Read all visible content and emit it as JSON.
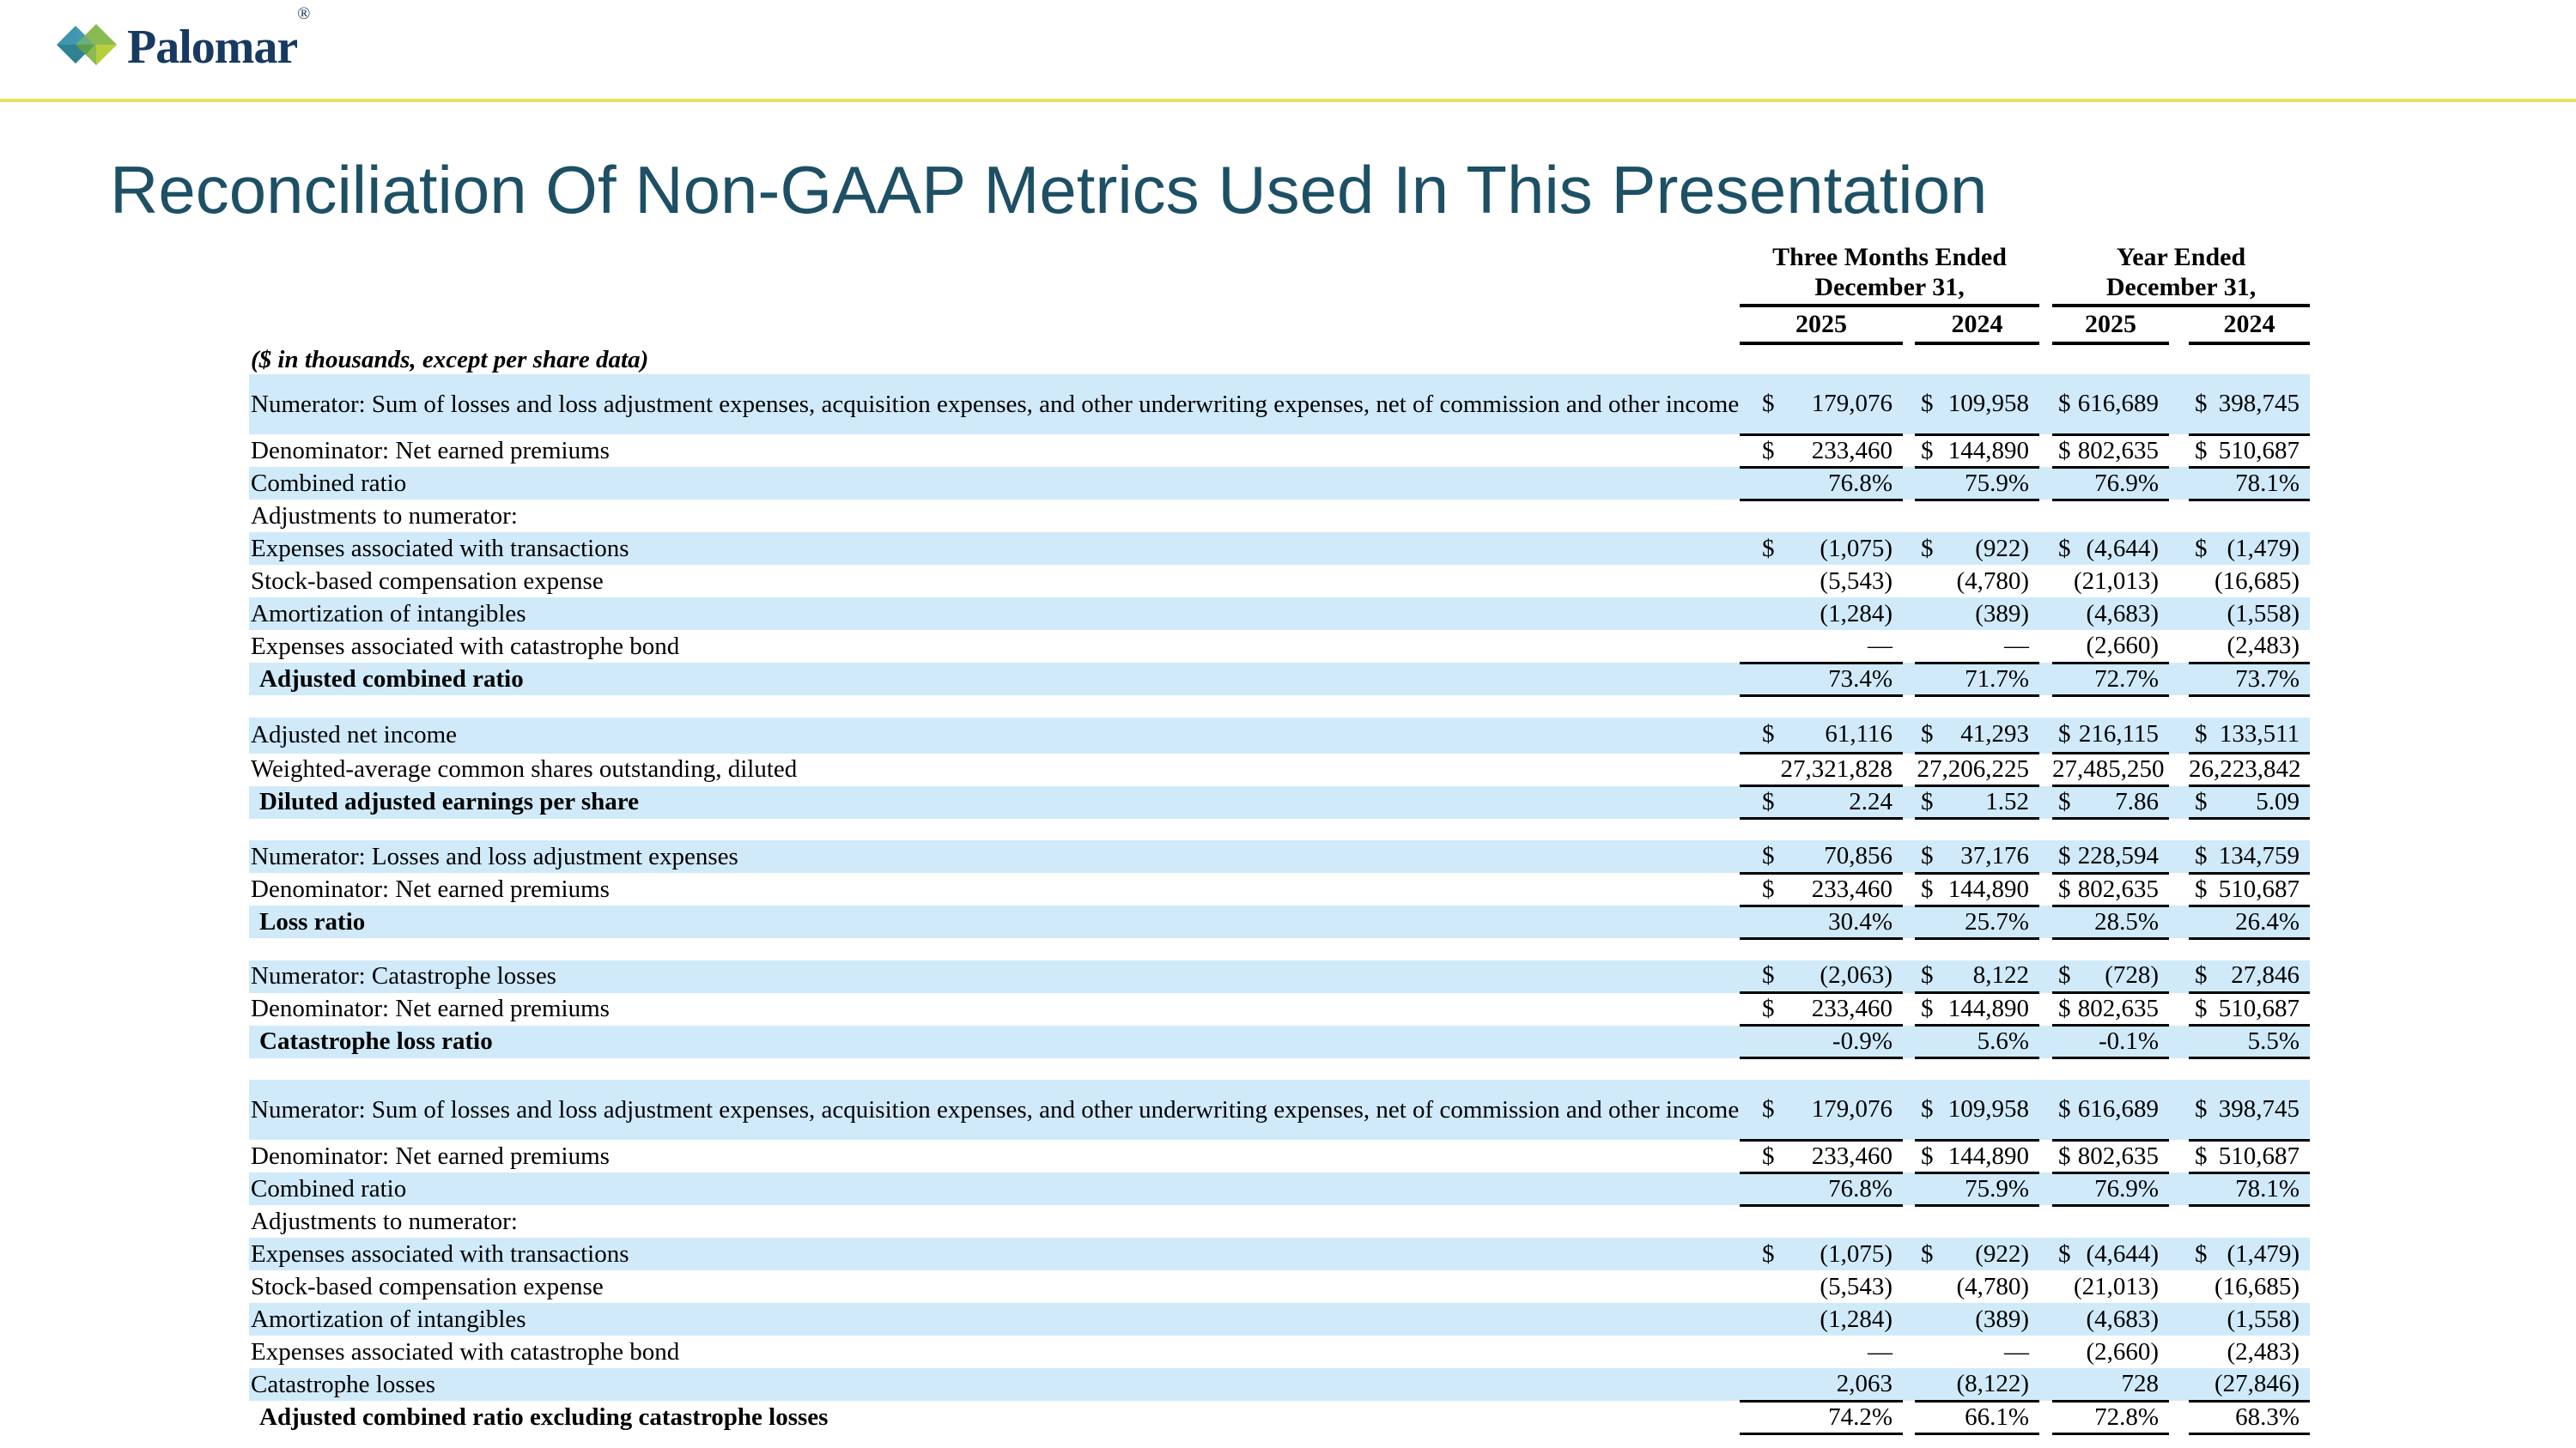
{
  "brand": {
    "logo_text": "Palomar",
    "registered_mark": "®",
    "colors": {
      "navy": "#173a61",
      "teal_top": "#3f96ae",
      "teal_bottom": "#2f8292",
      "green_top": "#8cba52",
      "green_right": "#b8ce3b",
      "green_overlap": "#5c9f4b",
      "divider_yellow": "#e1e465",
      "row_blue": "#d0eafa",
      "title_color": "#1d5065"
    }
  },
  "title": "Reconciliation Of Non-GAAP Metrics Used In This Presentation",
  "table": {
    "header": {
      "group1_line1": "Three Months Ended",
      "group1_line2": "December 31,",
      "group2_line1": "Year Ended",
      "group2_line2": "December 31,"
    },
    "years": [
      "2025",
      "2024",
      "2025",
      "2024"
    ],
    "units_note": "($ in thousands, except per share data)",
    "rows": [
      {
        "label": "Numerator: Sum of losses and loss adjustment expenses, acquisition expenses, and other underwriting expenses, net of commission and other income",
        "shade": true,
        "dollar": true,
        "ul": true,
        "h": 70,
        "values": [
          "179,076",
          "109,958",
          "616,689",
          "398,745"
        ]
      },
      {
        "label": "Denominator: Net earned premiums",
        "shade": false,
        "dollar": true,
        "ul": true,
        "values": [
          "233,460",
          "144,890",
          "802,635",
          "510,687"
        ]
      },
      {
        "label": "Combined ratio",
        "shade": true,
        "dollar": false,
        "ul": true,
        "values": [
          "76.8%",
          "75.9%",
          "76.9%",
          "78.1%"
        ]
      },
      {
        "label": "Adjustments to numerator:",
        "shade": false,
        "dollar": false,
        "ul": false,
        "values": null
      },
      {
        "label": "Expenses associated with transactions",
        "shade": true,
        "dollar": true,
        "ul": false,
        "values": [
          "(1,075)",
          "(922)",
          "(4,644)",
          "(1,479)"
        ]
      },
      {
        "label": "Stock-based compensation expense",
        "shade": false,
        "dollar": false,
        "ul": false,
        "values": [
          "(5,543)",
          "(4,780)",
          "(21,013)",
          "(16,685)"
        ]
      },
      {
        "label": "Amortization of intangibles",
        "shade": true,
        "dollar": false,
        "ul": false,
        "values": [
          "(1,284)",
          "(389)",
          "(4,683)",
          "(1,558)"
        ]
      },
      {
        "label": "Expenses associated with catastrophe bond",
        "shade": false,
        "dollar": false,
        "ul": true,
        "values": [
          "—",
          "—",
          "(2,660)",
          "(2,483)"
        ]
      },
      {
        "label": "Adjusted combined ratio",
        "shade": true,
        "bold": true,
        "dollar": false,
        "ul": true,
        "values": [
          "73.4%",
          "71.7%",
          "72.7%",
          "73.7%"
        ]
      },
      {
        "spacer": true
      },
      {
        "label": "Adjusted net income",
        "shade": true,
        "dollar": true,
        "ul": true,
        "h": 42,
        "values": [
          "61,116",
          "41,293",
          "216,115",
          "133,511"
        ]
      },
      {
        "label": "Weighted-average common shares outstanding, diluted",
        "shade": false,
        "dollar": false,
        "ul": true,
        "values": [
          "27,321,828",
          "27,206,225",
          "27,485,250",
          "26,223,842"
        ]
      },
      {
        "label": "Diluted adjusted earnings per share",
        "shade": true,
        "bold": true,
        "dollar": true,
        "ul": true,
        "values": [
          "2.24",
          "1.52",
          "7.86",
          "5.09"
        ]
      },
      {
        "spacer": true
      },
      {
        "label": "Numerator: Losses and loss adjustment expenses",
        "shade": true,
        "dollar": true,
        "ul": true,
        "values": [
          "70,856",
          "37,176",
          "228,594",
          "134,759"
        ]
      },
      {
        "label": "Denominator: Net earned premiums",
        "shade": false,
        "dollar": true,
        "ul": true,
        "values": [
          "233,460",
          "144,890",
          "802,635",
          "510,687"
        ]
      },
      {
        "label": "Loss ratio",
        "shade": true,
        "bold": true,
        "dollar": false,
        "ul": true,
        "values": [
          "30.4%",
          "25.7%",
          "28.5%",
          "26.4%"
        ]
      },
      {
        "spacer": true
      },
      {
        "label": "Numerator: Catastrophe losses",
        "shade": true,
        "dollar": true,
        "ul": true,
        "values": [
          "(2,063)",
          "8,122",
          "(728)",
          "27,846"
        ]
      },
      {
        "label": "Denominator: Net earned premiums",
        "shade": false,
        "dollar": true,
        "ul": true,
        "values": [
          "233,460",
          "144,890",
          "802,635",
          "510,687"
        ]
      },
      {
        "label": "Catastrophe loss ratio",
        "shade": true,
        "bold": true,
        "dollar": false,
        "ul": true,
        "values": [
          "-0.9%",
          "5.6%",
          "-0.1%",
          "5.5%"
        ]
      },
      {
        "spacer": true
      },
      {
        "label": "Numerator: Sum of losses and loss adjustment expenses, acquisition expenses, and other underwriting expenses, net of commission and other income",
        "shade": true,
        "dollar": true,
        "ul": true,
        "h": 70,
        "values": [
          "179,076",
          "109,958",
          "616,689",
          "398,745"
        ]
      },
      {
        "label": "Denominator: Net earned premiums",
        "shade": false,
        "dollar": true,
        "ul": true,
        "values": [
          "233,460",
          "144,890",
          "802,635",
          "510,687"
        ]
      },
      {
        "label": "Combined ratio",
        "shade": true,
        "dollar": false,
        "ul": true,
        "values": [
          "76.8%",
          "75.9%",
          "76.9%",
          "78.1%"
        ]
      },
      {
        "label": "Adjustments to numerator:",
        "shade": false,
        "dollar": false,
        "ul": false,
        "values": null
      },
      {
        "label": "Expenses associated with transactions",
        "shade": true,
        "dollar": true,
        "ul": false,
        "values": [
          "(1,075)",
          "(922)",
          "(4,644)",
          "(1,479)"
        ]
      },
      {
        "label": "Stock-based compensation expense",
        "shade": false,
        "dollar": false,
        "ul": false,
        "values": [
          "(5,543)",
          "(4,780)",
          "(21,013)",
          "(16,685)"
        ]
      },
      {
        "label": "Amortization of intangibles",
        "shade": true,
        "dollar": false,
        "ul": false,
        "values": [
          "(1,284)",
          "(389)",
          "(4,683)",
          "(1,558)"
        ]
      },
      {
        "label": "Expenses associated with catastrophe bond",
        "shade": false,
        "dollar": false,
        "ul": false,
        "values": [
          "—",
          "—",
          "(2,660)",
          "(2,483)"
        ]
      },
      {
        "label": "Catastrophe losses",
        "shade": true,
        "dollar": false,
        "ul": true,
        "values": [
          "2,063",
          "(8,122)",
          "728",
          "(27,846)"
        ]
      },
      {
        "label": "Adjusted combined ratio excluding catastrophe losses",
        "shade": false,
        "bold": true,
        "dollar": false,
        "ul": true,
        "values": [
          "74.2%",
          "66.1%",
          "72.8%",
          "68.3%"
        ]
      }
    ]
  }
}
